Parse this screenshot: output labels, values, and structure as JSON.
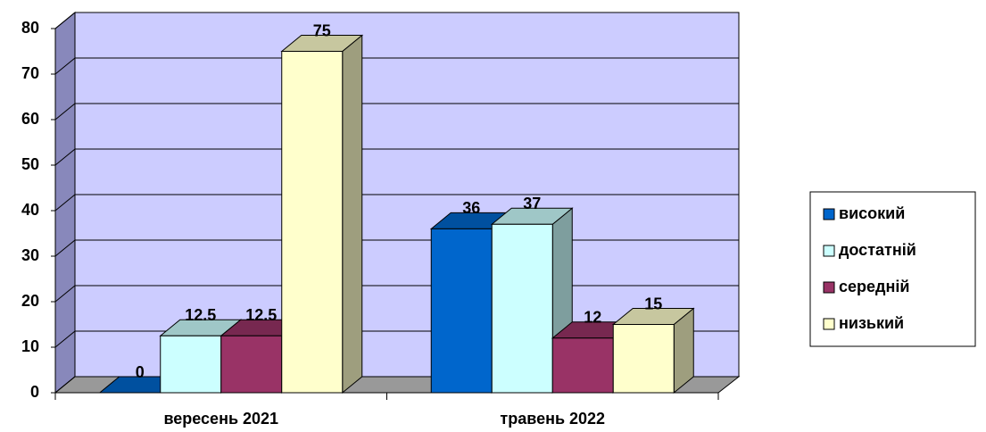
{
  "chart_data": {
    "type": "bar3d",
    "categories": [
      "вересень 2021",
      "травень 2022"
    ],
    "series": [
      {
        "name": "високий",
        "color": "#0066cc",
        "values": [
          0,
          36
        ]
      },
      {
        "name": "достатній",
        "color": "#ccffff",
        "values": [
          12.5,
          37
        ]
      },
      {
        "name": "середній",
        "color": "#993366",
        "values": [
          12.5,
          12
        ]
      },
      {
        "name": "низький",
        "color": "#ffffcc",
        "values": [
          75,
          15
        ]
      }
    ],
    "ylim": [
      0,
      80
    ],
    "yticks": [
      0,
      10,
      20,
      30,
      40,
      50,
      60,
      70,
      80
    ],
    "grid": true,
    "legend": "right"
  }
}
